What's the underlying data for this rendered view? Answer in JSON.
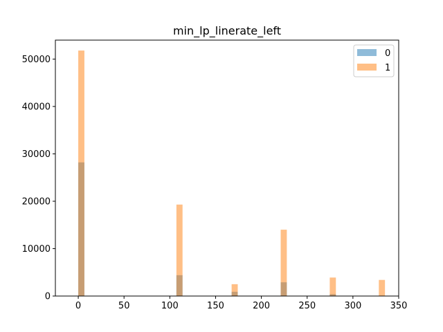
{
  "chart_data": {
    "type": "bar",
    "title": "min_lp_linerate_left",
    "xlabel": "",
    "ylabel": "",
    "xlim": [
      -25,
      350
    ],
    "ylim": [
      0,
      54000
    ],
    "x_ticks": [
      0,
      50,
      100,
      150,
      200,
      250,
      300,
      350
    ],
    "y_ticks": [
      0,
      10000,
      20000,
      30000,
      40000,
      50000
    ],
    "x_tick_labels": [
      "0",
      "50",
      "100",
      "150",
      "200",
      "250",
      "300",
      "350"
    ],
    "y_tick_labels": [
      "0",
      "10000",
      "20000",
      "30000",
      "40000",
      "50000"
    ],
    "bin_width": 6.7,
    "legend_position": "top-right",
    "grid": false,
    "series": [
      {
        "name": "0",
        "color": "#1f77b4",
        "alpha": 0.5,
        "bins": [
          {
            "x": 0,
            "count": 28200
          },
          {
            "x": 107.2,
            "count": 4400
          },
          {
            "x": 167.5,
            "count": 900
          },
          {
            "x": 221.1,
            "count": 2900
          },
          {
            "x": 274.7,
            "count": 400
          },
          {
            "x": 328.3,
            "count": 0
          }
        ]
      },
      {
        "name": "1",
        "color": "#ff7f0e",
        "alpha": 0.5,
        "bins": [
          {
            "x": 0,
            "count": 51800
          },
          {
            "x": 107.2,
            "count": 19300
          },
          {
            "x": 167.5,
            "count": 2500
          },
          {
            "x": 221.1,
            "count": 14000
          },
          {
            "x": 274.7,
            "count": 3900
          },
          {
            "x": 328.3,
            "count": 3400
          }
        ]
      }
    ]
  }
}
